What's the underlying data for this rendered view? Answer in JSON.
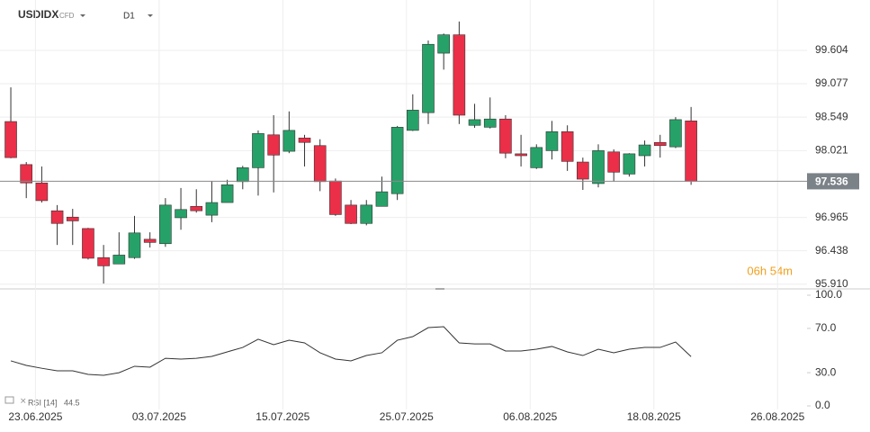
{
  "chart_data": {
    "type": "candlestick",
    "symbol": "USDIDX",
    "instrument": "CFD",
    "timeframe": "D1",
    "countdown": "06h 54m",
    "up_color": "#26a269",
    "down_color": "#eb2f48",
    "open": [
      98.48,
      97.8,
      97.51,
      97.07,
      96.97,
      96.79,
      96.33,
      96.23,
      96.33,
      96.62,
      96.55,
      96.96,
      97.14,
      97.0,
      97.2,
      97.53,
      97.75,
      98.27,
      98.01,
      98.22,
      98.1,
      97.54,
      97.16,
      96.87,
      97.14,
      97.34,
      98.34,
      98.62,
      99.56,
      99.85,
      98.42,
      98.39,
      98.52,
      97.97,
      97.75,
      98.02,
      98.32,
      97.84,
      97.5,
      98.0,
      97.65,
      97.94,
      98.15,
      98.08,
      98.49
    ],
    "high": [
      99.02,
      97.84,
      97.77,
      97.16,
      97.1,
      96.8,
      96.53,
      96.73,
      96.99,
      96.73,
      97.27,
      97.43,
      97.41,
      97.54,
      97.56,
      97.78,
      98.34,
      98.58,
      98.64,
      98.27,
      98.2,
      97.58,
      97.24,
      97.24,
      97.61,
      98.41,
      98.91,
      99.76,
      99.87,
      100.06,
      98.76,
      98.86,
      98.58,
      98.27,
      98.12,
      98.49,
      98.42,
      97.91,
      98.12,
      98.04,
      97.98,
      98.18,
      98.27,
      98.55,
      98.71
    ],
    "low": [
      97.9,
      97.27,
      97.2,
      96.53,
      96.53,
      96.3,
      95.92,
      96.23,
      96.31,
      96.49,
      96.5,
      96.77,
      97.04,
      96.89,
      97.2,
      97.41,
      97.31,
      97.36,
      97.98,
      97.77,
      97.38,
      96.99,
      96.86,
      96.84,
      97.14,
      97.24,
      98.33,
      98.44,
      99.3,
      98.44,
      98.38,
      98.37,
      97.9,
      97.77,
      97.73,
      97.88,
      97.7,
      97.4,
      97.44,
      97.53,
      97.61,
      97.77,
      97.91,
      98.06,
      97.48
    ],
    "close": [
      97.91,
      97.51,
      97.23,
      96.87,
      96.91,
      96.32,
      96.2,
      96.37,
      96.72,
      96.57,
      97.16,
      97.09,
      97.07,
      97.2,
      97.48,
      97.75,
      98.29,
      97.95,
      98.34,
      98.15,
      97.53,
      97.01,
      96.87,
      97.16,
      97.37,
      98.39,
      98.66,
      99.7,
      99.85,
      98.58,
      98.51,
      98.52,
      97.98,
      97.94,
      98.07,
      98.32,
      97.85,
      97.57,
      98.02,
      97.68,
      97.97,
      98.11,
      98.1,
      98.51,
      97.536
    ],
    "ylim": [
      95.85,
      100.4
    ],
    "yticks": [
      {
        "value": 95.91,
        "label": "95.910"
      },
      96.438,
      96.965,
      98.021,
      98.549,
      99.077,
      99.604
    ],
    "xlim": [
      -0.7,
      51.5
    ],
    "xticks": [
      {
        "value": 2,
        "label": "23.06.2025"
      },
      {
        "value": 10,
        "label": "03.07.2025"
      },
      {
        "value": 18,
        "label": "15.07.2025"
      },
      {
        "value": 26,
        "label": "25.07.2025"
      },
      {
        "value": 34,
        "label": "06.08.2025"
      },
      {
        "value": 42,
        "label": "18.08.2025"
      },
      {
        "value": 50,
        "label": "26.08.2025"
      }
    ],
    "rsi": {
      "name": "RSI [14]",
      "color": "#333333",
      "values": [
        40.7,
        36.6,
        34.0,
        31.7,
        31.7,
        28.5,
        27.6,
        30.0,
        35.8,
        35.0,
        43.0,
        42.3,
        43.0,
        44.7,
        48.8,
        52.8,
        60.2,
        55.3,
        59.3,
        56.9,
        48.0,
        42.3,
        40.7,
        45.5,
        48.0,
        59.3,
        62.6,
        70.7,
        71.5,
        56.9,
        56.0,
        56.0,
        49.6,
        49.6,
        51.2,
        53.7,
        48.8,
        45.5,
        51.2,
        48.0,
        51.2,
        52.8,
        52.8,
        57.7,
        44.5
      ],
      "ylim": [
        0,
        100
      ],
      "yticks": [
        {
          "value": 0,
          "label": "0.0"
        },
        {
          "value": 30,
          "label": "30.0"
        },
        {
          "value": 70,
          "label": "70.0"
        },
        {
          "value": 100,
          "label": "100.0"
        }
      ]
    }
  }
}
